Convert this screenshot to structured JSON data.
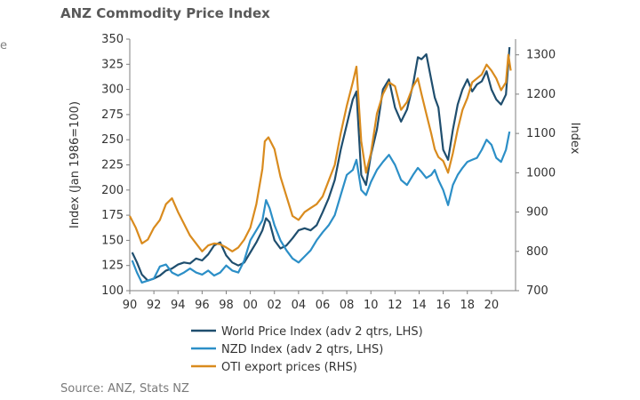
{
  "page": {
    "title": "ANZ Commodity Price Index",
    "edge_fragment": "e",
    "source": "Source: ANZ, Stats NZ"
  },
  "chart_data": {
    "type": "line",
    "title": "ANZ Commodity Price Index",
    "xlabel": "",
    "ylabel_left": "Index (Jan 1986=100)",
    "ylabel_right": "Index",
    "x_range": [
      1990,
      2022
    ],
    "ylim_left": [
      100,
      350
    ],
    "ylim_right": [
      700,
      1340
    ],
    "x_tick_values": [
      1990,
      1992,
      1994,
      1996,
      1998,
      2000,
      2002,
      2004,
      2006,
      2008,
      2010,
      2012,
      2014,
      2016,
      2018,
      2020
    ],
    "x_tick_labels": [
      "90",
      "92",
      "94",
      "96",
      "98",
      "00",
      "02",
      "04",
      "06",
      "08",
      "10",
      "12",
      "14",
      "16",
      "18",
      "20"
    ],
    "y_left_ticks": [
      100,
      125,
      150,
      175,
      200,
      225,
      250,
      275,
      300,
      325,
      350
    ],
    "y_right_ticks": [
      700,
      800,
      900,
      1000,
      1100,
      1200,
      1300
    ],
    "series": [
      {
        "name": "World Price Index (adv 2 qtrs, LHS)",
        "axis": "left",
        "color": "#1f4e6e",
        "points": [
          [
            1990.2,
            138
          ],
          [
            1990.6,
            128
          ],
          [
            1991.0,
            116
          ],
          [
            1991.5,
            110
          ],
          [
            1992.0,
            112
          ],
          [
            1992.5,
            115
          ],
          [
            1993.0,
            120
          ],
          [
            1993.5,
            122
          ],
          [
            1994.0,
            126
          ],
          [
            1994.5,
            128
          ],
          [
            1995.0,
            127
          ],
          [
            1995.5,
            132
          ],
          [
            1996.0,
            130
          ],
          [
            1996.5,
            136
          ],
          [
            1997.0,
            145
          ],
          [
            1997.5,
            148
          ],
          [
            1998.0,
            135
          ],
          [
            1998.5,
            128
          ],
          [
            1999.0,
            125
          ],
          [
            1999.5,
            128
          ],
          [
            2000.0,
            138
          ],
          [
            2000.5,
            148
          ],
          [
            2001.0,
            160
          ],
          [
            2001.3,
            172
          ],
          [
            2001.6,
            168
          ],
          [
            2002.0,
            150
          ],
          [
            2002.5,
            142
          ],
          [
            2003.0,
            145
          ],
          [
            2003.5,
            152
          ],
          [
            2004.0,
            160
          ],
          [
            2004.5,
            162
          ],
          [
            2005.0,
            160
          ],
          [
            2005.5,
            165
          ],
          [
            2006.0,
            178
          ],
          [
            2006.5,
            192
          ],
          [
            2007.0,
            210
          ],
          [
            2007.5,
            240
          ],
          [
            2008.0,
            265
          ],
          [
            2008.5,
            290
          ],
          [
            2008.8,
            298
          ],
          [
            2009.2,
            215
          ],
          [
            2009.6,
            205
          ],
          [
            2010.0,
            235
          ],
          [
            2010.5,
            260
          ],
          [
            2011.0,
            300
          ],
          [
            2011.5,
            310
          ],
          [
            2012.0,
            282
          ],
          [
            2012.5,
            268
          ],
          [
            2013.0,
            280
          ],
          [
            2013.5,
            305
          ],
          [
            2013.9,
            332
          ],
          [
            2014.2,
            330
          ],
          [
            2014.6,
            335
          ],
          [
            2015.0,
            310
          ],
          [
            2015.3,
            292
          ],
          [
            2015.6,
            282
          ],
          [
            2016.0,
            240
          ],
          [
            2016.4,
            230
          ],
          [
            2016.8,
            260
          ],
          [
            2017.2,
            285
          ],
          [
            2017.6,
            300
          ],
          [
            2018.0,
            310
          ],
          [
            2018.4,
            298
          ],
          [
            2018.8,
            305
          ],
          [
            2019.2,
            308
          ],
          [
            2019.6,
            318
          ],
          [
            2020.0,
            300
          ],
          [
            2020.4,
            290
          ],
          [
            2020.8,
            285
          ],
          [
            2021.2,
            295
          ],
          [
            2021.5,
            342
          ]
        ]
      },
      {
        "name": "NZD Index (adv 2 qtrs, LHS)",
        "axis": "left",
        "color": "#2c8fc7",
        "points": [
          [
            1990.2,
            130
          ],
          [
            1990.6,
            118
          ],
          [
            1991.0,
            108
          ],
          [
            1991.5,
            110
          ],
          [
            1992.0,
            112
          ],
          [
            1992.5,
            124
          ],
          [
            1993.0,
            126
          ],
          [
            1993.5,
            118
          ],
          [
            1994.0,
            115
          ],
          [
            1994.5,
            118
          ],
          [
            1995.0,
            122
          ],
          [
            1995.5,
            118
          ],
          [
            1996.0,
            116
          ],
          [
            1996.5,
            120
          ],
          [
            1997.0,
            115
          ],
          [
            1997.5,
            118
          ],
          [
            1998.0,
            125
          ],
          [
            1998.5,
            120
          ],
          [
            1999.0,
            118
          ],
          [
            1999.5,
            130
          ],
          [
            2000.0,
            150
          ],
          [
            2000.5,
            160
          ],
          [
            2001.0,
            170
          ],
          [
            2001.3,
            190
          ],
          [
            2001.6,
            182
          ],
          [
            2002.0,
            165
          ],
          [
            2002.5,
            150
          ],
          [
            2003.0,
            140
          ],
          [
            2003.5,
            132
          ],
          [
            2004.0,
            128
          ],
          [
            2004.5,
            134
          ],
          [
            2005.0,
            140
          ],
          [
            2005.5,
            150
          ],
          [
            2006.0,
            158
          ],
          [
            2006.5,
            165
          ],
          [
            2007.0,
            175
          ],
          [
            2007.5,
            195
          ],
          [
            2008.0,
            215
          ],
          [
            2008.5,
            220
          ],
          [
            2008.8,
            230
          ],
          [
            2009.2,
            200
          ],
          [
            2009.6,
            195
          ],
          [
            2010.0,
            208
          ],
          [
            2010.5,
            220
          ],
          [
            2011.0,
            228
          ],
          [
            2011.5,
            235
          ],
          [
            2012.0,
            225
          ],
          [
            2012.5,
            210
          ],
          [
            2013.0,
            205
          ],
          [
            2013.5,
            215
          ],
          [
            2013.9,
            222
          ],
          [
            2014.2,
            218
          ],
          [
            2014.6,
            212
          ],
          [
            2015.0,
            215
          ],
          [
            2015.3,
            220
          ],
          [
            2015.6,
            210
          ],
          [
            2016.0,
            200
          ],
          [
            2016.4,
            185
          ],
          [
            2016.8,
            205
          ],
          [
            2017.2,
            215
          ],
          [
            2017.6,
            222
          ],
          [
            2018.0,
            228
          ],
          [
            2018.4,
            230
          ],
          [
            2018.8,
            232
          ],
          [
            2019.2,
            240
          ],
          [
            2019.6,
            250
          ],
          [
            2020.0,
            245
          ],
          [
            2020.4,
            232
          ],
          [
            2020.8,
            228
          ],
          [
            2021.2,
            240
          ],
          [
            2021.5,
            258
          ]
        ]
      },
      {
        "name": "OTI export prices (RHS)",
        "axis": "right",
        "color": "#d98b1e",
        "points": [
          [
            1990.0,
            890
          ],
          [
            1990.5,
            860
          ],
          [
            1991.0,
            820
          ],
          [
            1991.5,
            830
          ],
          [
            1992.0,
            860
          ],
          [
            1992.5,
            880
          ],
          [
            1993.0,
            920
          ],
          [
            1993.5,
            935
          ],
          [
            1994.0,
            900
          ],
          [
            1994.5,
            870
          ],
          [
            1995.0,
            840
          ],
          [
            1995.5,
            820
          ],
          [
            1996.0,
            800
          ],
          [
            1996.5,
            815
          ],
          [
            1997.0,
            820
          ],
          [
            1997.5,
            818
          ],
          [
            1998.0,
            810
          ],
          [
            1998.5,
            800
          ],
          [
            1999.0,
            810
          ],
          [
            1999.5,
            830
          ],
          [
            2000.0,
            860
          ],
          [
            2000.5,
            920
          ],
          [
            2001.0,
            1010
          ],
          [
            2001.2,
            1080
          ],
          [
            2001.5,
            1090
          ],
          [
            2002.0,
            1060
          ],
          [
            2002.5,
            990
          ],
          [
            2003.0,
            940
          ],
          [
            2003.5,
            890
          ],
          [
            2004.0,
            880
          ],
          [
            2004.5,
            900
          ],
          [
            2005.0,
            910
          ],
          [
            2005.5,
            920
          ],
          [
            2006.0,
            940
          ],
          [
            2006.5,
            980
          ],
          [
            2007.0,
            1020
          ],
          [
            2007.5,
            1100
          ],
          [
            2008.0,
            1170
          ],
          [
            2008.5,
            1230
          ],
          [
            2008.8,
            1270
          ],
          [
            2009.2,
            1080
          ],
          [
            2009.6,
            1000
          ],
          [
            2010.0,
            1050
          ],
          [
            2010.5,
            1150
          ],
          [
            2011.0,
            1200
          ],
          [
            2011.5,
            1230
          ],
          [
            2012.0,
            1220
          ],
          [
            2012.5,
            1160
          ],
          [
            2013.0,
            1180
          ],
          [
            2013.5,
            1220
          ],
          [
            2013.9,
            1240
          ],
          [
            2014.2,
            1200
          ],
          [
            2014.6,
            1150
          ],
          [
            2015.0,
            1100
          ],
          [
            2015.3,
            1060
          ],
          [
            2015.6,
            1040
          ],
          [
            2016.0,
            1030
          ],
          [
            2016.4,
            1000
          ],
          [
            2016.8,
            1050
          ],
          [
            2017.2,
            1110
          ],
          [
            2017.6,
            1160
          ],
          [
            2018.0,
            1190
          ],
          [
            2018.4,
            1230
          ],
          [
            2018.8,
            1240
          ],
          [
            2019.2,
            1250
          ],
          [
            2019.6,
            1275
          ],
          [
            2020.0,
            1260
          ],
          [
            2020.4,
            1240
          ],
          [
            2020.8,
            1210
          ],
          [
            2021.2,
            1230
          ],
          [
            2021.4,
            1300
          ],
          [
            2021.6,
            1260
          ]
        ]
      }
    ],
    "legend_position": "bottom-center"
  }
}
